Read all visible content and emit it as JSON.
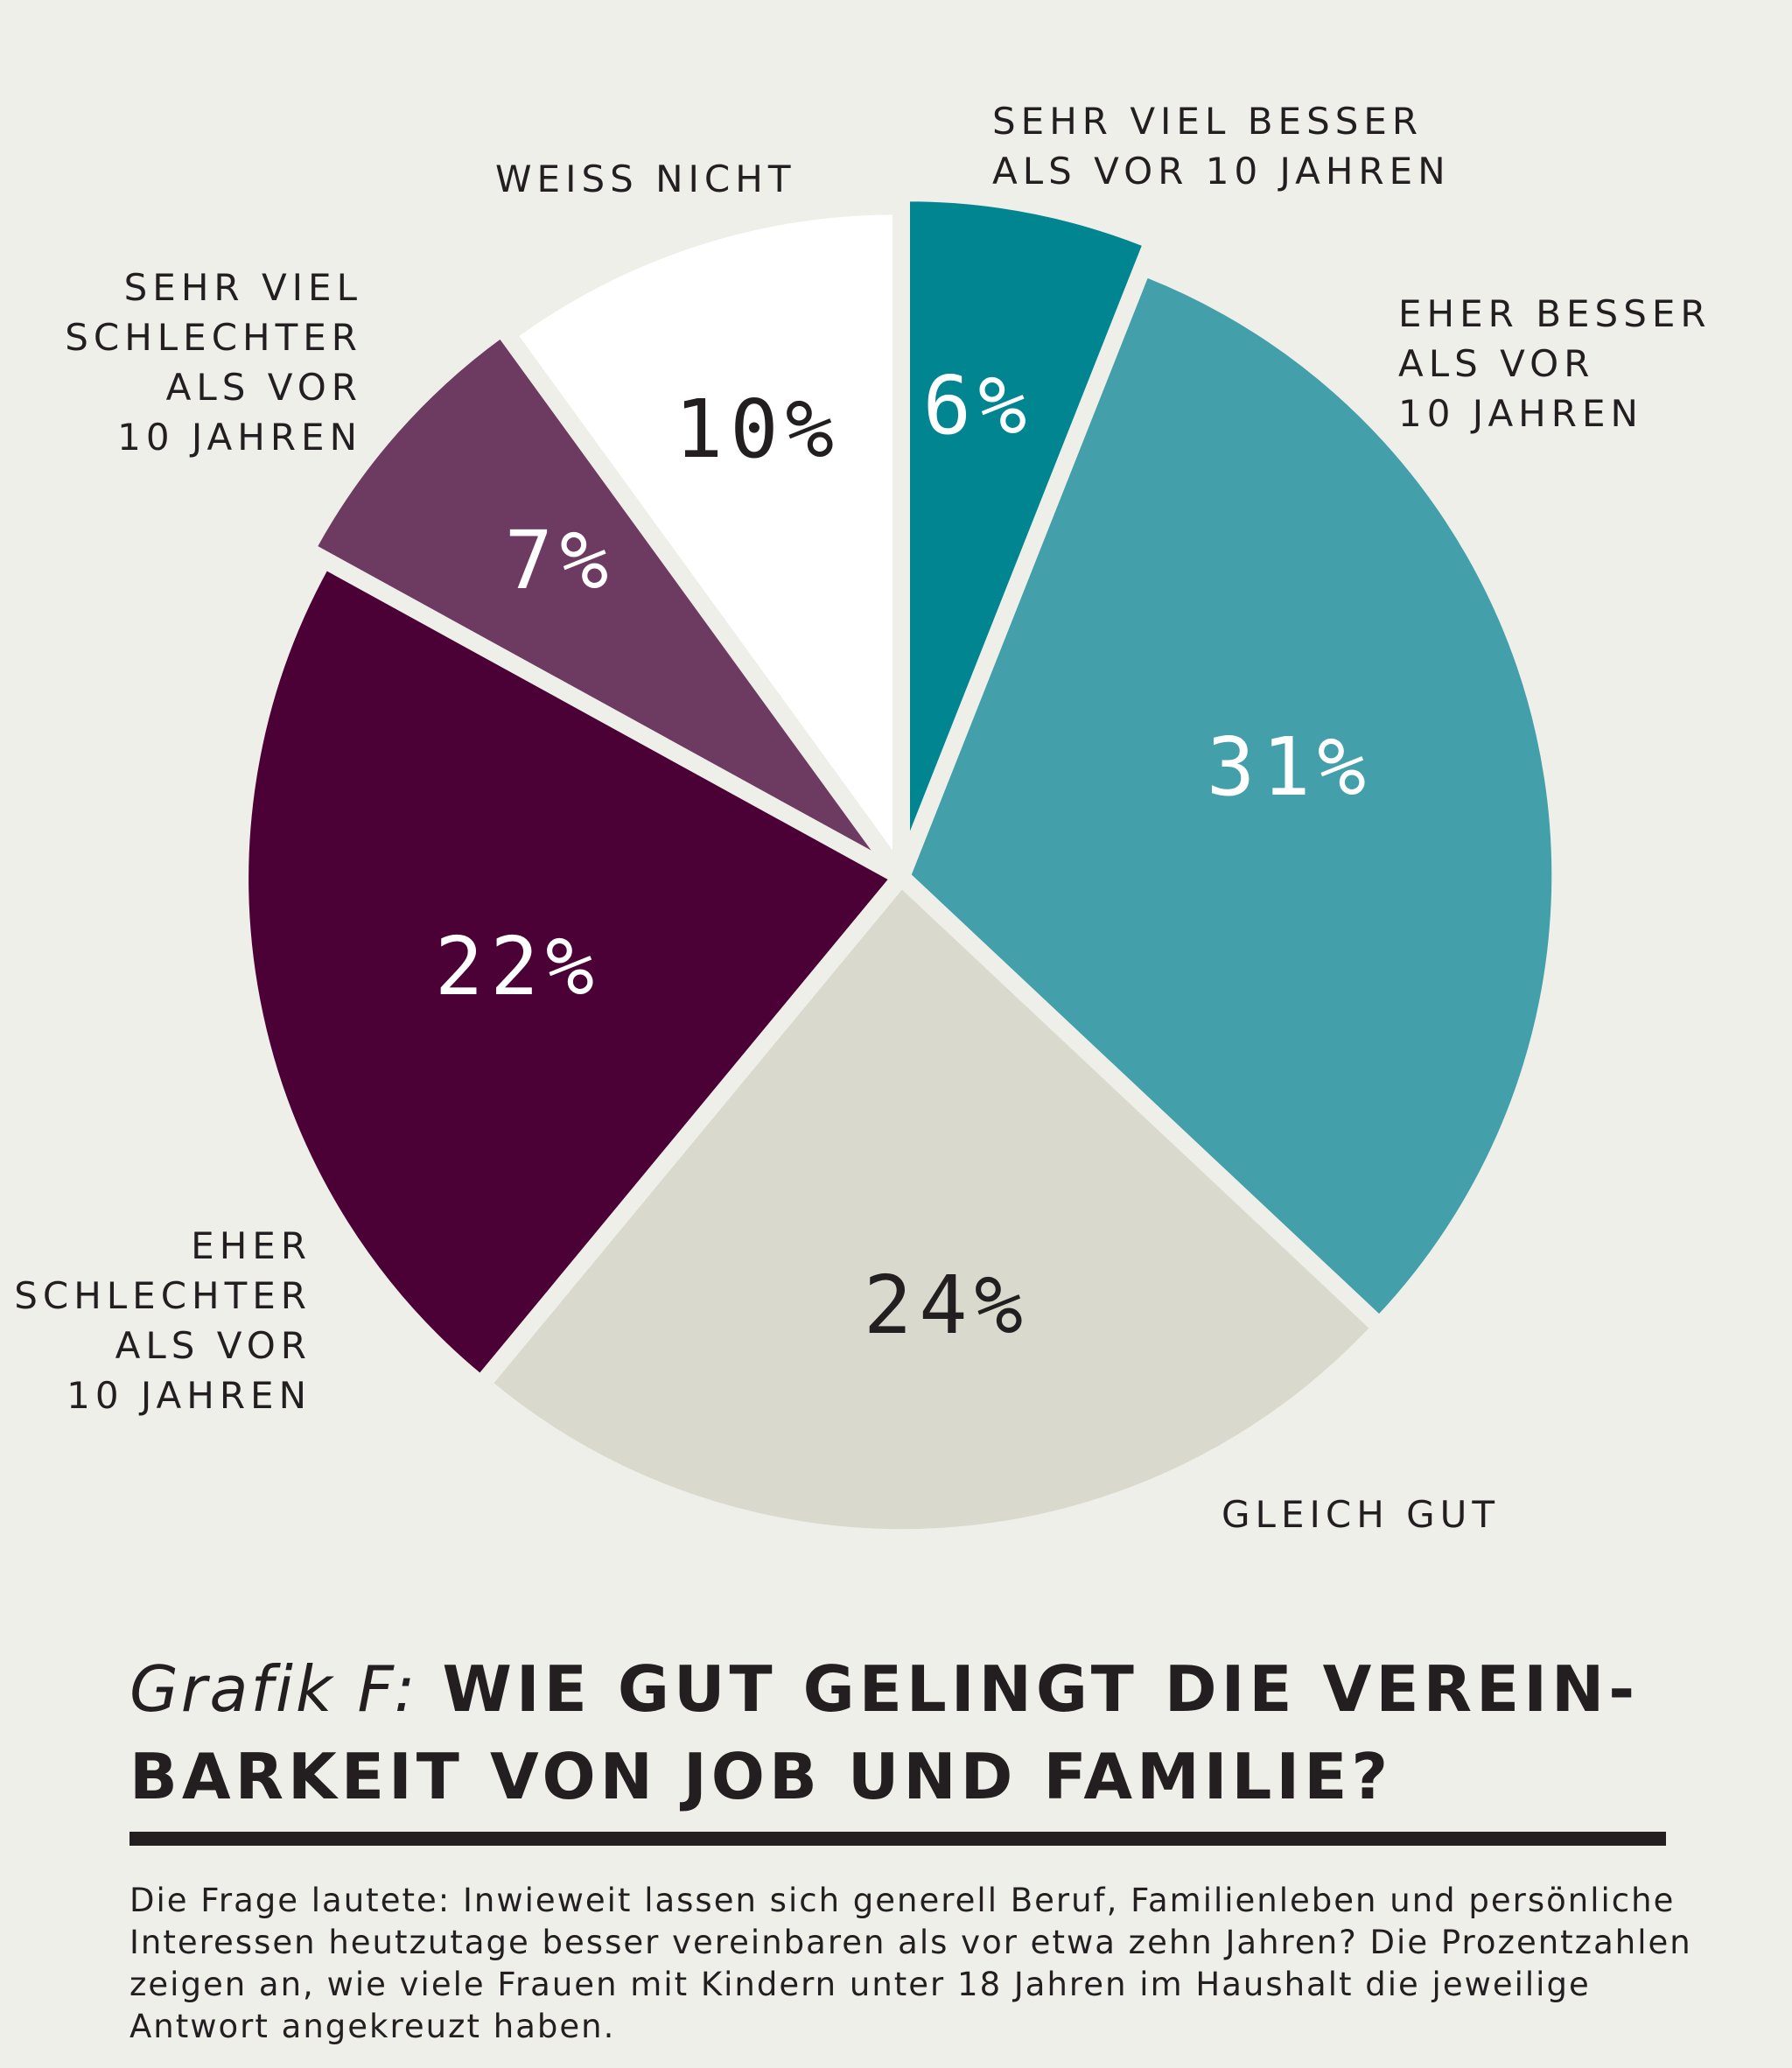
{
  "chart_data": {
    "type": "pie",
    "slices": [
      {
        "label": "SEHR VIEL BESSER\nALS VOR 10 JAHREN",
        "value": 6,
        "value_label": "6%",
        "color": "#008591"
      },
      {
        "label": "EHER BESSER\nALS VOR\n10 JAHREN",
        "value": 31,
        "value_label": "31%",
        "color": "#439fa9"
      },
      {
        "label": "GLEICH GUT",
        "value": 24,
        "value_label": "24%",
        "color": "#d9d9cd"
      },
      {
        "label": "EHER\nSCHLECHTER\nALS VOR\n10 JAHREN",
        "value": 22,
        "value_label": "22%",
        "color": "#4b0036"
      },
      {
        "label": "SEHR VIEL\nSCHLECHTER\nALS VOR\n10 JAHREN",
        "value": 7,
        "value_label": "7%",
        "color": "#6d3a62"
      },
      {
        "label": "WEISS NICHT",
        "value": 10,
        "value_label": "10%",
        "color": "#ffffff"
      }
    ]
  },
  "title": {
    "prefix": "Grafik F:",
    "line1": "WIE GUT GELINGT DIE VEREIN-",
    "line2": "BARKEIT VON JOB UND FAMILIE?"
  },
  "note": {
    "line1": "Die Frage lautete: Inwieweit lassen sich generell Beruf, Familienleben und persönliche",
    "line2": "Interessen heutzutage besser vereinbaren als vor etwa zehn Jahren? Die Prozentzahlen",
    "line3": "zeigen an, wie viele Frauen mit Kindern unter 18 Jahren im Haushalt die jeweilige",
    "line4": "Antwort angekreuzt haben."
  }
}
